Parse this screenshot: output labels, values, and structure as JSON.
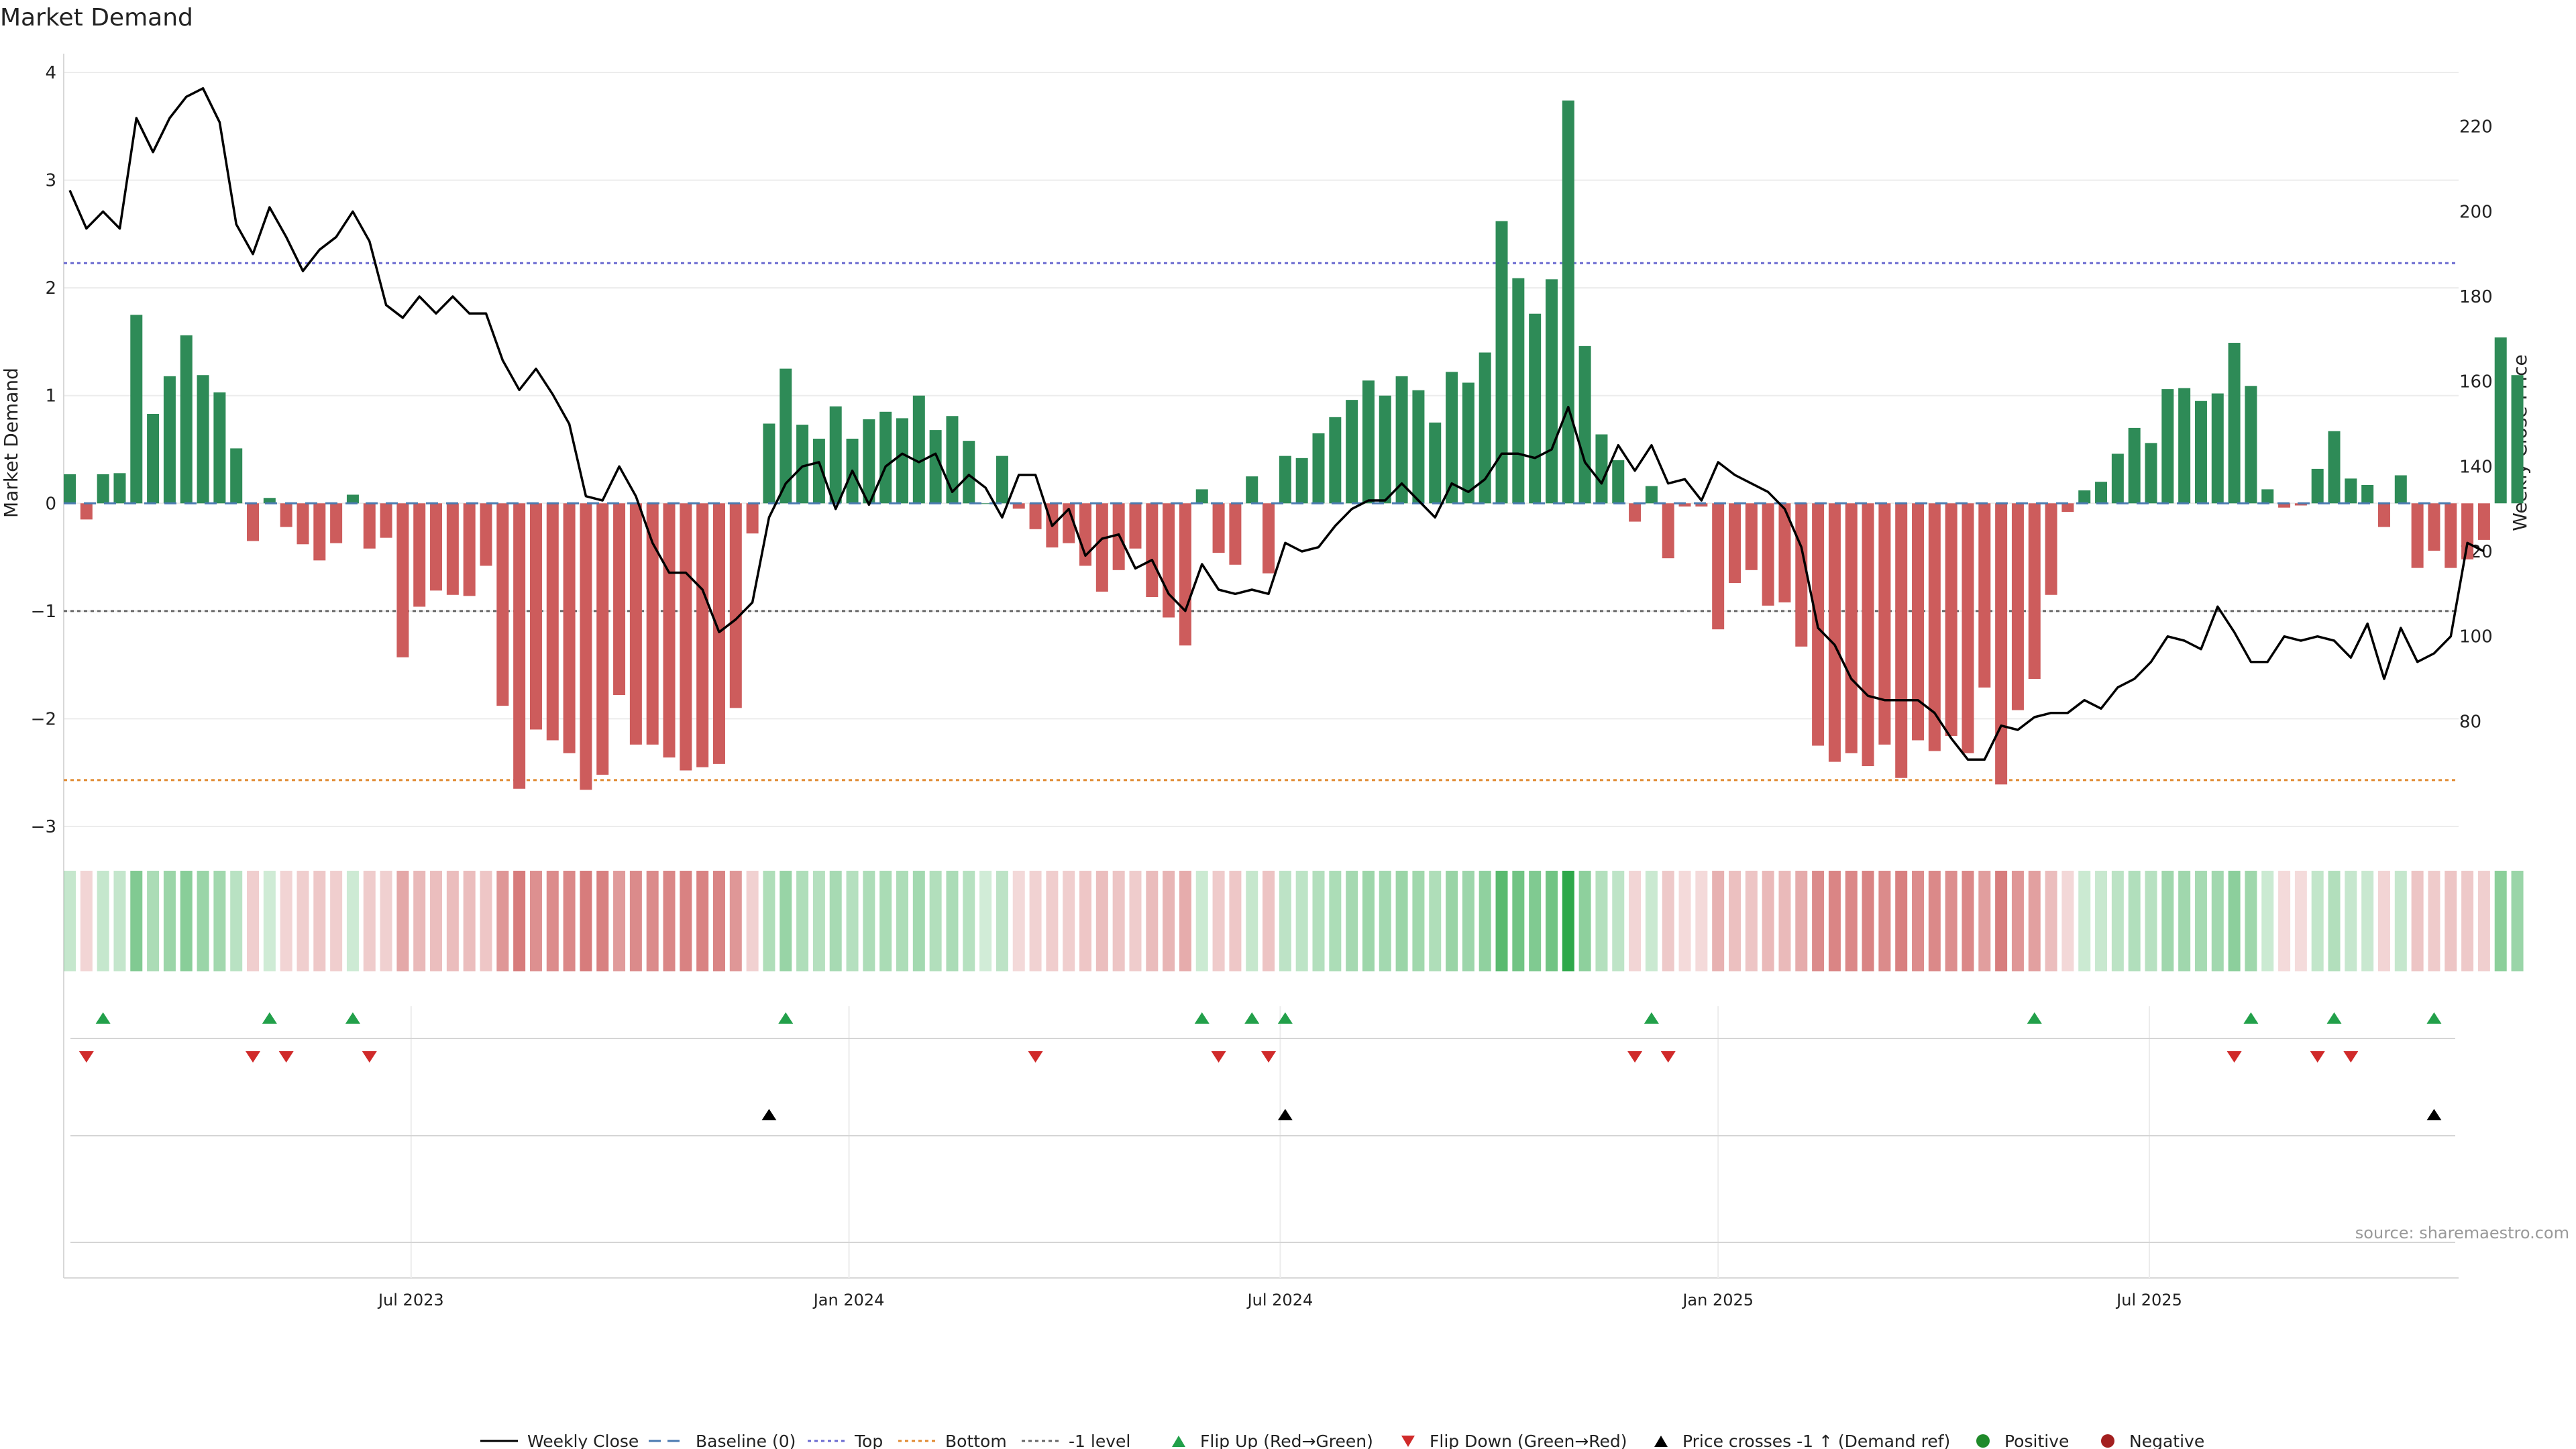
{
  "colors": {
    "positive_bar": "#2e8b57",
    "negative_bar": "#cd5c5c",
    "price_line": "#000000",
    "top_line": "#6a6ad0",
    "bottom_line": "#e08a30",
    "level_line": "#666666",
    "flip_up": "#22a04a",
    "flip_down": "#d02a2a",
    "cross_marker": "#000000",
    "positive_dot": "#1f8a2a",
    "negative_dot": "#a31f1f"
  },
  "chart_data": {
    "type": "bar",
    "title": "Market Demand",
    "ylabel": "Market Demand",
    "y2label": "Weekly Close Price",
    "ylim": [
      -3.05,
      4.05
    ],
    "y_ticks": [
      -3,
      -2,
      -1,
      0,
      1,
      2,
      3,
      4
    ],
    "y_tick_labels": [
      "−3",
      "−2",
      "−1",
      "0",
      "1",
      "2",
      "3",
      "4"
    ],
    "y2lim": [
      54,
      234
    ],
    "y2_ticks": [
      80,
      100,
      120,
      140,
      160,
      180,
      200,
      220
    ],
    "y2_tick_labels": [
      "80",
      "100",
      "120",
      "140",
      "160",
      "180",
      "200",
      "220"
    ],
    "x_tick_labels": [
      "Jul 2023",
      "Jan 2024",
      "Jul 2024",
      "Jan 2025",
      "Jul 2025"
    ],
    "x_tick_positions": [
      20.5,
      46.8,
      72.7,
      99.0,
      124.9
    ],
    "top_level": 2.23,
    "bottom_level": -2.57,
    "minus_one_level": -1,
    "demand": [
      0.27,
      -0.15,
      0.27,
      0.28,
      1.75,
      0.83,
      1.18,
      1.56,
      1.19,
      1.03,
      0.51,
      -0.35,
      0.05,
      -0.22,
      -0.38,
      -0.53,
      -0.37,
      0.08,
      -0.42,
      -0.32,
      -1.43,
      -0.96,
      -0.81,
      -0.85,
      -0.86,
      -0.58,
      -1.88,
      -2.65,
      -2.1,
      -2.2,
      -2.32,
      -2.66,
      -2.52,
      -1.78,
      -2.24,
      -2.24,
      -2.36,
      -2.48,
      -2.45,
      -2.42,
      -1.9,
      -0.28,
      0.74,
      1.25,
      0.73,
      0.6,
      0.9,
      0.6,
      0.78,
      0.85,
      0.79,
      1.0,
      0.68,
      0.81,
      0.58,
      0.0,
      0.44,
      -0.05,
      -0.24,
      -0.41,
      -0.37,
      -0.58,
      -0.82,
      -0.62,
      -0.42,
      -0.87,
      -1.06,
      -1.32,
      0.13,
      -0.46,
      -0.57,
      0.25,
      -0.65,
      0.44,
      0.42,
      0.65,
      0.8,
      0.96,
      1.14,
      1.0,
      1.18,
      1.05,
      0.75,
      1.22,
      1.12,
      1.4,
      2.62,
      2.09,
      1.76,
      2.08,
      3.74,
      1.46,
      0.64,
      0.4,
      -0.17,
      0.16,
      -0.51,
      -0.03,
      -0.03,
      -1.17,
      -0.74,
      -0.62,
      -0.95,
      -0.92,
      -1.33,
      -2.25,
      -2.4,
      -2.32,
      -2.44,
      -2.24,
      -2.55,
      -2.2,
      -2.3,
      -2.16,
      -2.32,
      -1.71,
      -2.61,
      -1.92,
      -1.63,
      -0.85,
      -0.08,
      0.12,
      0.2,
      0.46,
      0.7,
      0.56,
      1.06,
      1.07,
      0.95,
      1.02,
      1.49,
      1.09,
      0.13,
      -0.04,
      -0.02,
      0.32,
      0.67,
      0.23,
      0.17,
      -0.22,
      0.26,
      -0.6,
      -0.44,
      -0.6,
      -0.52,
      -0.34,
      1.54,
      1.19
    ],
    "price": [
      205,
      196,
      200,
      196,
      222,
      214,
      222,
      227,
      229,
      221,
      197,
      190,
      201,
      194,
      186,
      191,
      194,
      200,
      193,
      178,
      175,
      180,
      176,
      180,
      176,
      176,
      165,
      158,
      163,
      157,
      150,
      133,
      132,
      140,
      133,
      122,
      115,
      115,
      111,
      101,
      104,
      108,
      128,
      136,
      140,
      141,
      130,
      139,
      131,
      140,
      143,
      141,
      143,
      134,
      138,
      135,
      128,
      138,
      138,
      126,
      130,
      119,
      123,
      124,
      116,
      118,
      110,
      106,
      117,
      111,
      110,
      111,
      110,
      122,
      120,
      121,
      126,
      130,
      132,
      132,
      136,
      132,
      128,
      136,
      134,
      137,
      143,
      143,
      142,
      144,
      154,
      141,
      136,
      145,
      139,
      145,
      136,
      137,
      132,
      141,
      138,
      136,
      134,
      130,
      121,
      102,
      98,
      90,
      86,
      85,
      85,
      85,
      82,
      76,
      71,
      71,
      79,
      78,
      81,
      82,
      82,
      85,
      83,
      88,
      90,
      94,
      100,
      99,
      97,
      107,
      101,
      94,
      94,
      100,
      99,
      100,
      99,
      95,
      103,
      90,
      102,
      94,
      96,
      100,
      122,
      120
    ],
    "flip_up_index": [
      2,
      12,
      17,
      43,
      68,
      71,
      73,
      95,
      118,
      131,
      136,
      142
    ],
    "flip_down_index": [
      1,
      11,
      13,
      18,
      58,
      69,
      72,
      94,
      96,
      130,
      135,
      137
    ],
    "cross_up_index": [
      42,
      73,
      142
    ],
    "legend": [
      "Weekly Close",
      "Baseline (0)",
      "Top",
      "Bottom",
      "-1 level",
      "Flip Up (Red→Green)",
      "Flip Down (Green→Red)",
      "Price crosses -1 ↑ (Demand ref)",
      "Positive",
      "Negative"
    ]
  },
  "source": "source: sharemaestro.com"
}
